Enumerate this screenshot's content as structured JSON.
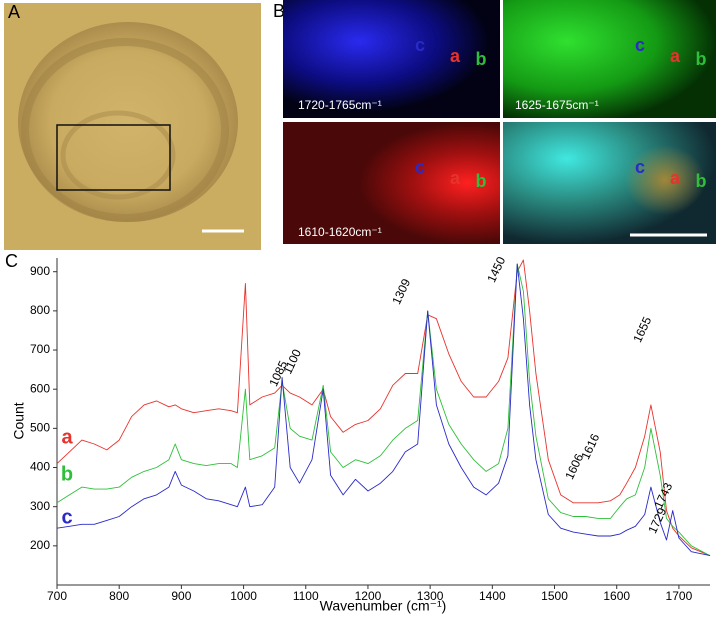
{
  "panels": {
    "A": {
      "label": "A"
    },
    "B": {
      "label": "B",
      "captions": [
        "1720-1765cm⁻¹",
        "1625-1675cm⁻¹",
        "1610-1620cm⁻¹"
      ]
    }
  },
  "chart_data": {
    "type": "line",
    "label": "C",
    "ylabel": "Count",
    "xlabel": "Wavenumber (cm⁻¹)",
    "xlim": [
      700,
      1750
    ],
    "ylim": [
      100,
      935
    ],
    "xticks": [
      700,
      800,
      900,
      1000,
      1100,
      1200,
      1300,
      1400,
      1500,
      1600,
      1700
    ],
    "yticks": [
      200,
      300,
      400,
      500,
      600,
      700,
      800,
      900
    ],
    "x": [
      700,
      720,
      740,
      760,
      780,
      800,
      820,
      840,
      860,
      880,
      890,
      900,
      920,
      940,
      960,
      980,
      990,
      1003,
      1010,
      1030,
      1050,
      1062,
      1075,
      1090,
      1110,
      1128,
      1140,
      1160,
      1180,
      1200,
      1220,
      1240,
      1260,
      1280,
      1296,
      1310,
      1330,
      1350,
      1370,
      1390,
      1410,
      1425,
      1440,
      1450,
      1460,
      1470,
      1490,
      1510,
      1530,
      1550,
      1570,
      1590,
      1605,
      1616,
      1630,
      1645,
      1655,
      1670,
      1680,
      1690,
      1700,
      1720,
      1750
    ],
    "series": [
      {
        "name": "a",
        "color": "#e8322c",
        "values": [
          410,
          440,
          470,
          460,
          445,
          470,
          530,
          560,
          570,
          555,
          560,
          550,
          540,
          545,
          550,
          545,
          540,
          870,
          560,
          580,
          590,
          610,
          590,
          580,
          560,
          600,
          530,
          490,
          510,
          520,
          550,
          610,
          640,
          640,
          790,
          780,
          690,
          620,
          580,
          580,
          620,
          680,
          900,
          930,
          800,
          640,
          420,
          330,
          310,
          310,
          310,
          315,
          330,
          360,
          400,
          480,
          560,
          440,
          290,
          245,
          225,
          195,
          175
        ]
      },
      {
        "name": "b",
        "color": "#2fbf3a",
        "values": [
          310,
          330,
          350,
          345,
          345,
          350,
          375,
          390,
          400,
          420,
          460,
          420,
          410,
          405,
          410,
          410,
          400,
          600,
          420,
          430,
          450,
          620,
          500,
          480,
          470,
          610,
          440,
          400,
          420,
          410,
          430,
          470,
          500,
          520,
          800,
          600,
          510,
          460,
          420,
          390,
          410,
          500,
          920,
          850,
          620,
          480,
          320,
          285,
          275,
          275,
          270,
          270,
          300,
          320,
          330,
          400,
          500,
          380,
          270,
          250,
          235,
          200,
          175
        ]
      },
      {
        "name": "c",
        "color": "#2a2ac8",
        "values": [
          245,
          250,
          255,
          255,
          265,
          275,
          300,
          320,
          330,
          350,
          390,
          355,
          340,
          320,
          315,
          305,
          300,
          350,
          300,
          305,
          350,
          630,
          400,
          360,
          420,
          600,
          380,
          330,
          370,
          340,
          360,
          390,
          440,
          460,
          800,
          560,
          460,
          400,
          350,
          330,
          360,
          430,
          920,
          780,
          560,
          420,
          280,
          245,
          235,
          230,
          225,
          225,
          230,
          240,
          250,
          280,
          350,
          260,
          215,
          290,
          220,
          185,
          175
        ]
      }
    ],
    "annotations": [
      "1085",
      "1100",
      "1309",
      "1450",
      "1655",
      "1616",
      "1606",
      "1743",
      "1729"
    ]
  }
}
